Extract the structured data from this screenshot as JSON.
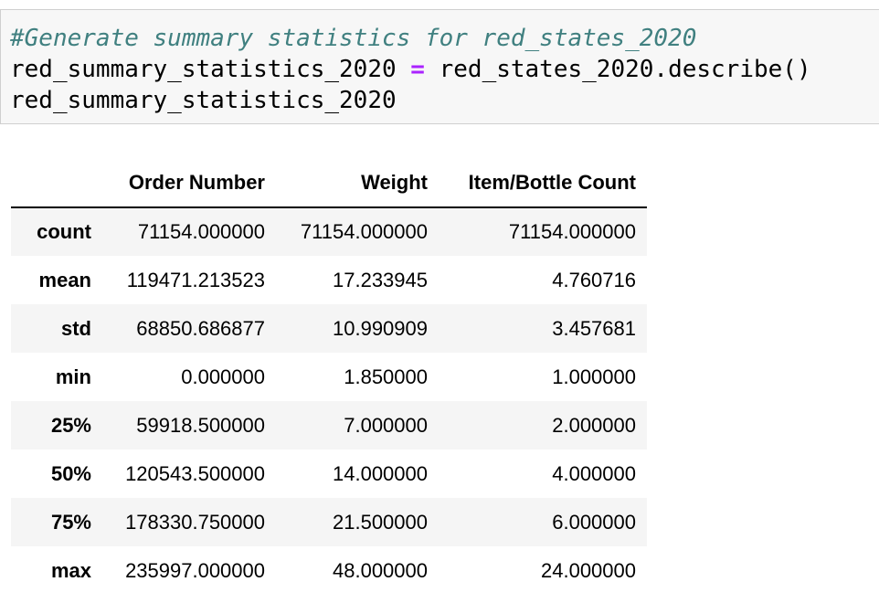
{
  "code_cell": {
    "line1": "#Generate summary statistics for red_states_2020",
    "line2_var": "red_summary_statistics_2020",
    "line2_op": "=",
    "line2_call": "red_states_2020.describe()",
    "line3": "red_summary_statistics_2020"
  },
  "output_table": {
    "index_header": "",
    "columns": [
      "Order Number",
      "Weight",
      "Item/Bottle Count"
    ],
    "rows": [
      {
        "label": "count",
        "values": [
          "71154.000000",
          "71154.000000",
          "71154.000000"
        ]
      },
      {
        "label": "mean",
        "values": [
          "119471.213523",
          "17.233945",
          "4.760716"
        ]
      },
      {
        "label": "std",
        "values": [
          "68850.686877",
          "10.990909",
          "3.457681"
        ]
      },
      {
        "label": "min",
        "values": [
          "0.000000",
          "1.850000",
          "1.000000"
        ]
      },
      {
        "label": "25%",
        "values": [
          "59918.500000",
          "7.000000",
          "2.000000"
        ]
      },
      {
        "label": "50%",
        "values": [
          "120543.500000",
          "14.000000",
          "4.000000"
        ]
      },
      {
        "label": "75%",
        "values": [
          "178330.750000",
          "21.500000",
          "6.000000"
        ]
      },
      {
        "label": "max",
        "values": [
          "235997.000000",
          "48.000000",
          "24.000000"
        ]
      }
    ]
  },
  "colors": {
    "comment": "#408080",
    "operator": "#aa22ff",
    "cell_background": "#f7f7f7",
    "row_stripe": "#f5f5f5"
  }
}
